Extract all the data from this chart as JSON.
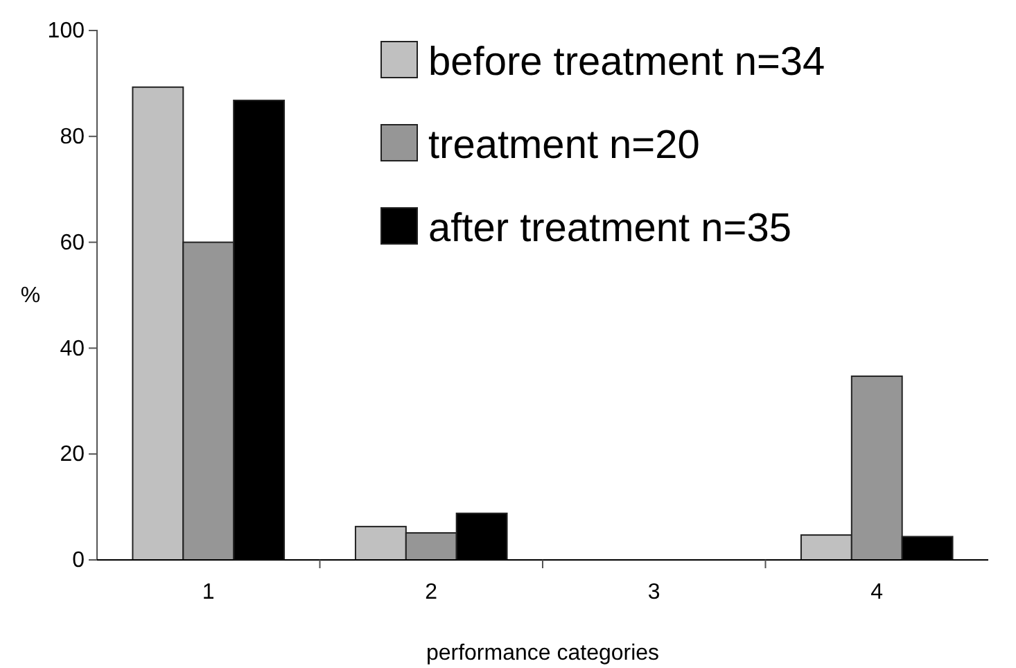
{
  "chart_data": {
    "type": "bar",
    "xlabel": "performance categories",
    "ylabel": "%",
    "categories": [
      "1",
      "2",
      "3",
      "4"
    ],
    "series": [
      {
        "name": "before treatment n=34",
        "color": "#c0c0c0",
        "values": [
          89.3,
          6.3,
          0,
          4.7
        ]
      },
      {
        "name": "treatment n=20",
        "color": "#969696",
        "values": [
          60,
          5.1,
          0,
          34.7
        ]
      },
      {
        "name": "after treatment n=35",
        "color": "#000000",
        "values": [
          86.8,
          8.8,
          0,
          4.4
        ]
      }
    ],
    "ylim": [
      0,
      100
    ],
    "yticks": [
      0,
      20,
      40,
      60,
      80,
      100
    ],
    "grid": false,
    "legend": "top right"
  }
}
